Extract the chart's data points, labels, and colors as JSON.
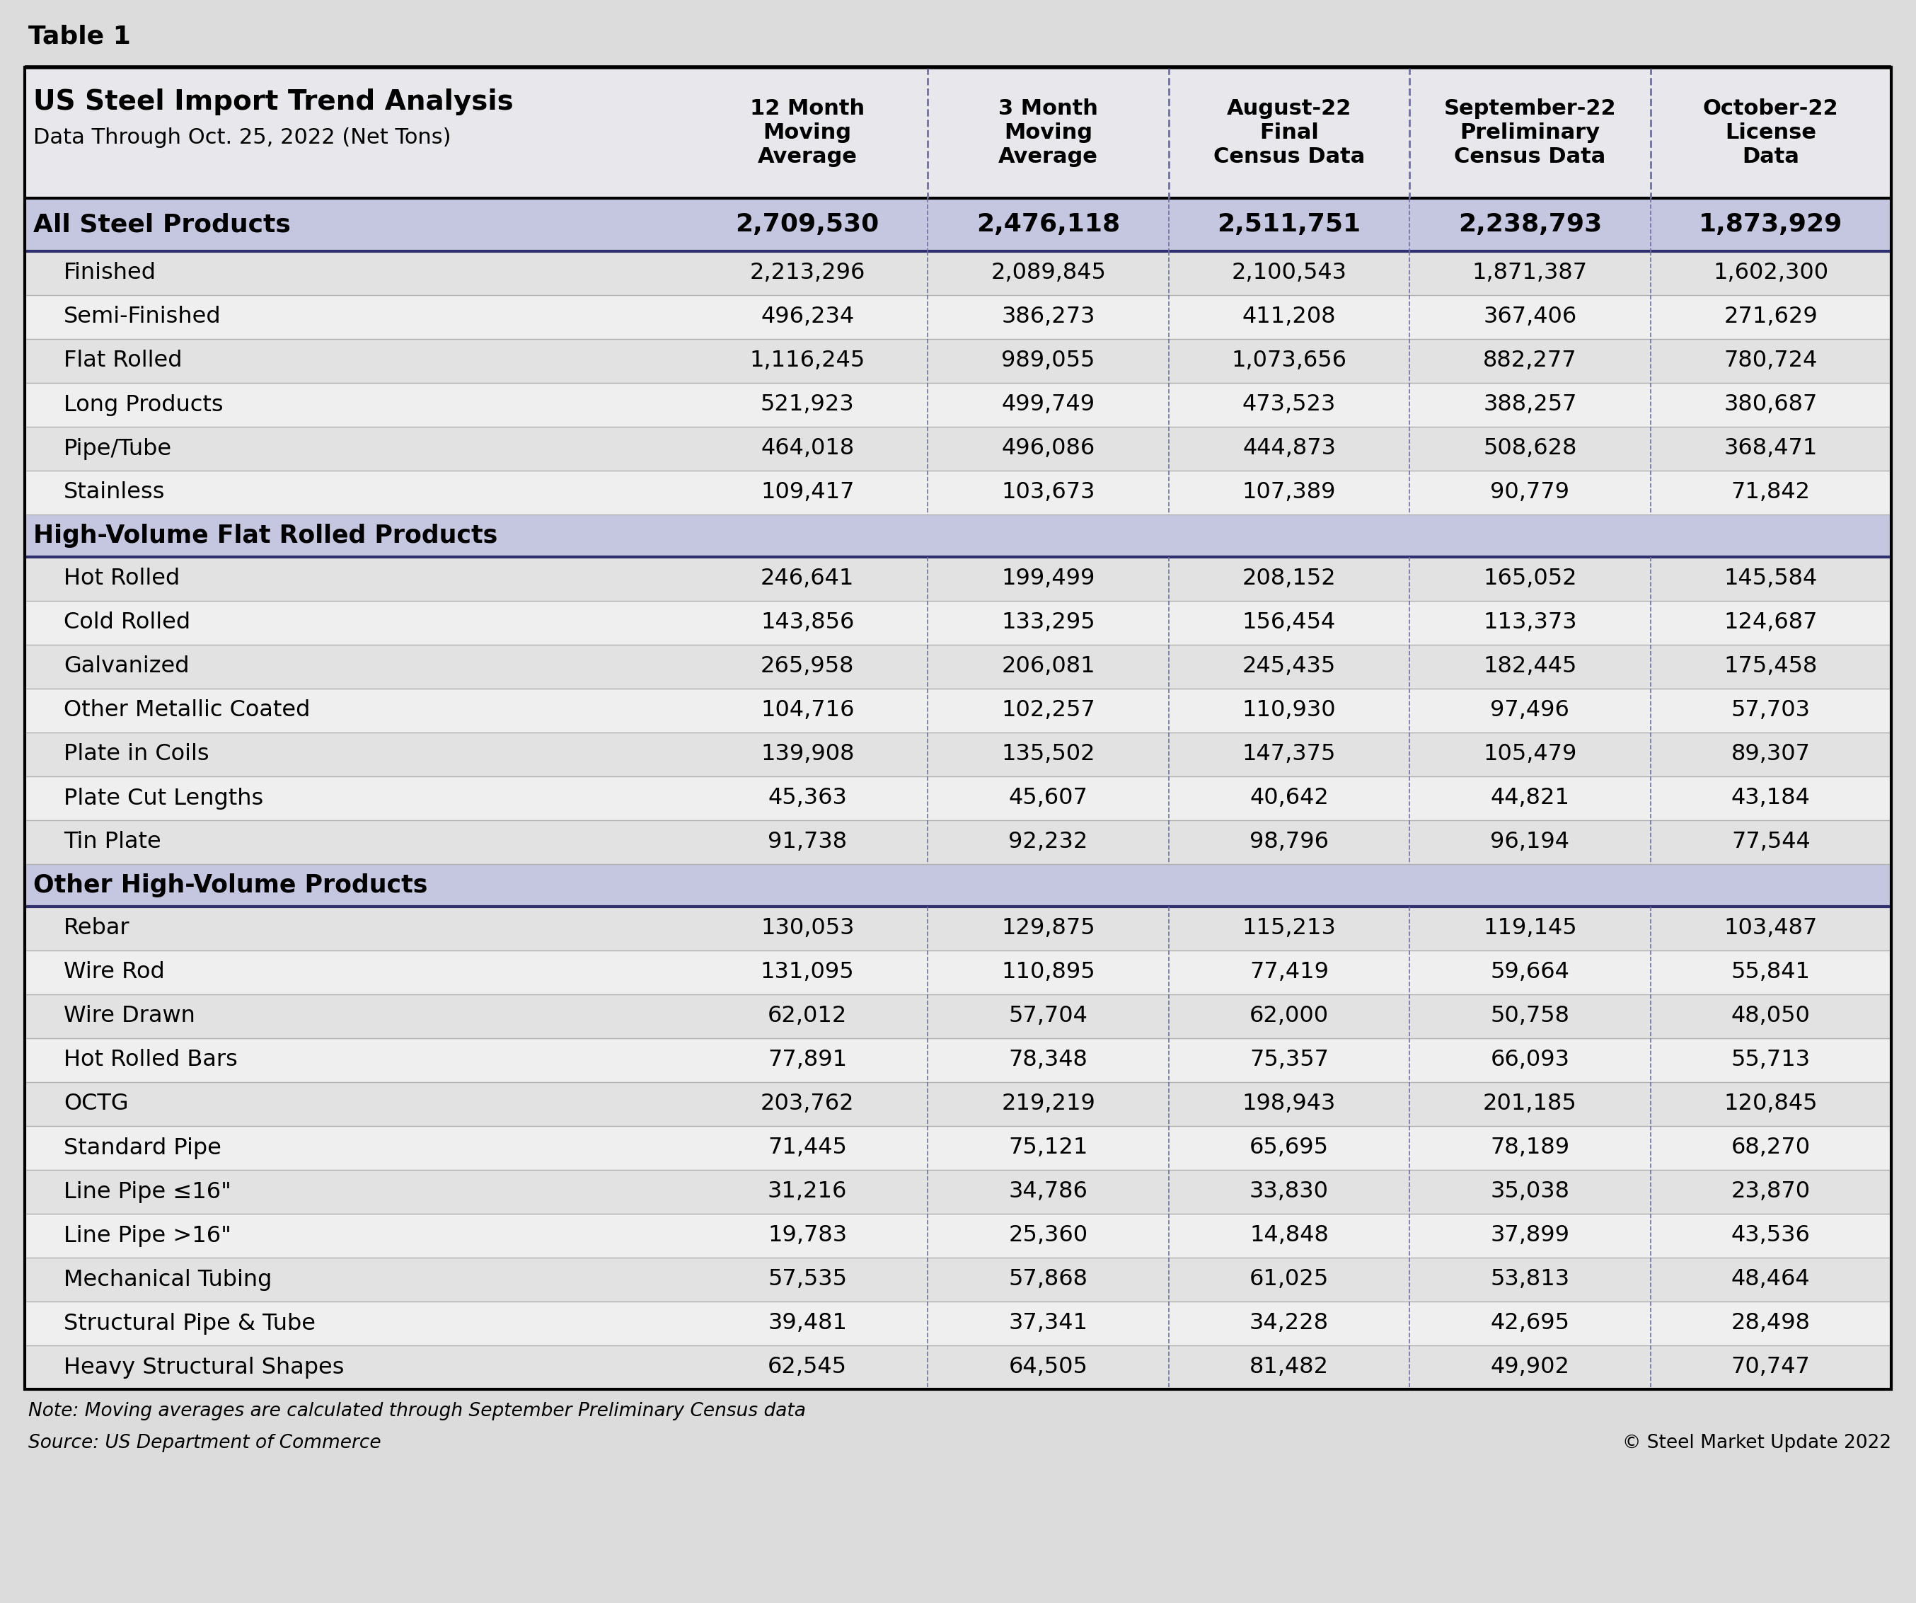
{
  "table_label": "Table 1",
  "title_line1": "US Steel Import Trend Analysis",
  "title_line2": "Data Through Oct. 25, 2022 (Net Tons)",
  "col_headers": [
    "12 Month\nMoving\nAverage",
    "3 Month\nMoving\nAverage",
    "August-22\nFinal\nCensus Data",
    "September-22\nPreliminary\nCensus Data",
    "October-22\nLicense\nData"
  ],
  "rows": [
    {
      "label": "All Steel Products",
      "type": "highlight",
      "values": [
        "2,709,530",
        "2,476,118",
        "2,511,751",
        "2,238,793",
        "1,873,929"
      ]
    },
    {
      "label": "Finished",
      "type": "data_alt",
      "values": [
        "2,213,296",
        "2,089,845",
        "2,100,543",
        "1,871,387",
        "1,602,300"
      ]
    },
    {
      "label": "Semi-Finished",
      "type": "data",
      "values": [
        "496,234",
        "386,273",
        "411,208",
        "367,406",
        "271,629"
      ]
    },
    {
      "label": "Flat Rolled",
      "type": "data_alt",
      "values": [
        "1,116,245",
        "989,055",
        "1,073,656",
        "882,277",
        "780,724"
      ]
    },
    {
      "label": "Long Products",
      "type": "data",
      "values": [
        "521,923",
        "499,749",
        "473,523",
        "388,257",
        "380,687"
      ]
    },
    {
      "label": "Pipe/Tube",
      "type": "data_alt",
      "values": [
        "464,018",
        "496,086",
        "444,873",
        "508,628",
        "368,471"
      ]
    },
    {
      "label": "Stainless",
      "type": "data",
      "values": [
        "109,417",
        "103,673",
        "107,389",
        "90,779",
        "71,842"
      ]
    },
    {
      "label": "High-Volume Flat Rolled Products",
      "type": "section",
      "values": [
        "",
        "",
        "",
        "",
        ""
      ]
    },
    {
      "label": "Hot Rolled",
      "type": "data_alt",
      "values": [
        "246,641",
        "199,499",
        "208,152",
        "165,052",
        "145,584"
      ]
    },
    {
      "label": "Cold Rolled",
      "type": "data",
      "values": [
        "143,856",
        "133,295",
        "156,454",
        "113,373",
        "124,687"
      ]
    },
    {
      "label": "Galvanized",
      "type": "data_alt",
      "values": [
        "265,958",
        "206,081",
        "245,435",
        "182,445",
        "175,458"
      ]
    },
    {
      "label": "Other Metallic Coated",
      "type": "data",
      "values": [
        "104,716",
        "102,257",
        "110,930",
        "97,496",
        "57,703"
      ]
    },
    {
      "label": "Plate in Coils",
      "type": "data_alt",
      "values": [
        "139,908",
        "135,502",
        "147,375",
        "105,479",
        "89,307"
      ]
    },
    {
      "label": "Plate Cut Lengths",
      "type": "data",
      "values": [
        "45,363",
        "45,607",
        "40,642",
        "44,821",
        "43,184"
      ]
    },
    {
      "label": "Tin Plate",
      "type": "data_alt",
      "values": [
        "91,738",
        "92,232",
        "98,796",
        "96,194",
        "77,544"
      ]
    },
    {
      "label": "Other High-Volume Products",
      "type": "section",
      "values": [
        "",
        "",
        "",
        "",
        ""
      ]
    },
    {
      "label": "Rebar",
      "type": "data_alt",
      "values": [
        "130,053",
        "129,875",
        "115,213",
        "119,145",
        "103,487"
      ]
    },
    {
      "label": "Wire Rod",
      "type": "data",
      "values": [
        "131,095",
        "110,895",
        "77,419",
        "59,664",
        "55,841"
      ]
    },
    {
      "label": "Wire Drawn",
      "type": "data_alt",
      "values": [
        "62,012",
        "57,704",
        "62,000",
        "50,758",
        "48,050"
      ]
    },
    {
      "label": "Hot Rolled Bars",
      "type": "data",
      "values": [
        "77,891",
        "78,348",
        "75,357",
        "66,093",
        "55,713"
      ]
    },
    {
      "label": "OCTG",
      "type": "data_alt",
      "values": [
        "203,762",
        "219,219",
        "198,943",
        "201,185",
        "120,845"
      ]
    },
    {
      "label": "Standard Pipe",
      "type": "data",
      "values": [
        "71,445",
        "75,121",
        "65,695",
        "78,189",
        "68,270"
      ]
    },
    {
      "label": "Line Pipe ≤16\"",
      "type": "data_alt",
      "values": [
        "31,216",
        "34,786",
        "33,830",
        "35,038",
        "23,870"
      ]
    },
    {
      "label": "Line Pipe >16\"",
      "type": "data",
      "values": [
        "19,783",
        "25,360",
        "14,848",
        "37,899",
        "43,536"
      ]
    },
    {
      "label": "Mechanical Tubing",
      "type": "data_alt",
      "values": [
        "57,535",
        "57,868",
        "61,025",
        "53,813",
        "48,464"
      ]
    },
    {
      "label": "Structural Pipe & Tube",
      "type": "data",
      "values": [
        "39,481",
        "37,341",
        "34,228",
        "42,695",
        "28,498"
      ]
    },
    {
      "label": "Heavy Structural Shapes",
      "type": "data_alt",
      "values": [
        "62,545",
        "64,505",
        "81,482",
        "49,902",
        "70,747"
      ]
    }
  ],
  "note_line1": "Note: Moving averages are calculated through September Preliminary Census data",
  "note_line2": "Source: US Department of Commerce",
  "copyright": "© Steel Market Update 2022",
  "bg_color": "#dcdcdc",
  "header_bg": "#e8e8ec",
  "highlight_bg": "#c5c7e0",
  "section_bg": "#c5c7e0",
  "data_light_bg": "#efefef",
  "data_dark_bg": "#e2e2e2",
  "outer_border": "#000000",
  "inner_border_light": "#b0b0b0",
  "section_border": "#303070",
  "col_border": "#7070a0"
}
